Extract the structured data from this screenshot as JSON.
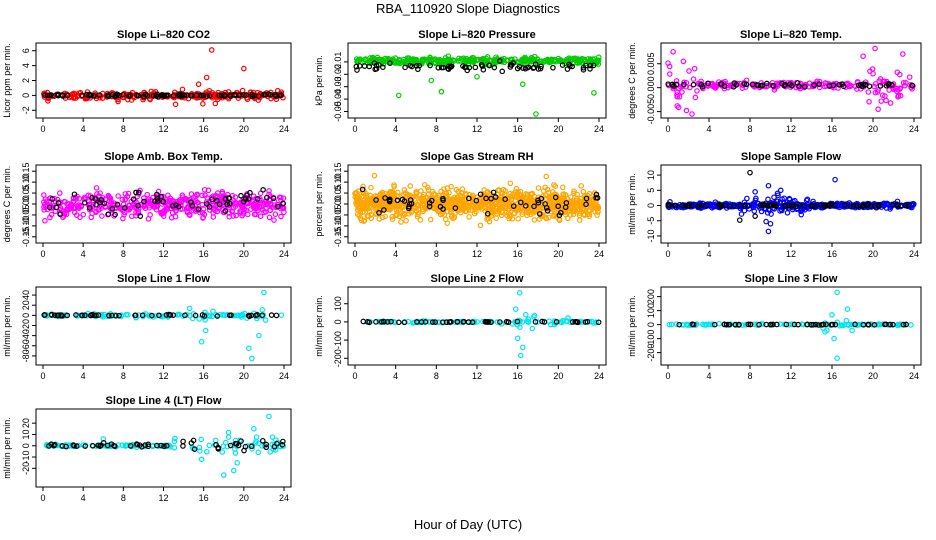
{
  "page": {
    "title": "RBA_110920  Slope Diagnostics",
    "xlabel": "Hour of Day (UTC)"
  },
  "chart_data": [
    {
      "id": "co2",
      "type": "scatter",
      "title": "Slope Li–820 CO2",
      "ylabel": "Licor ppm per min.",
      "xlabel": "",
      "xlim": [
        0,
        24
      ],
      "ylim": [
        -2.5,
        6.5
      ],
      "xticks": [
        "0",
        "4",
        "8",
        "12",
        "16",
        "20",
        "24"
      ],
      "yticks": [
        "-2",
        "0",
        "2",
        "4",
        "6"
      ],
      "ytick_values": [
        -2,
        0,
        2,
        4,
        6
      ],
      "series": [
        {
          "name": "points",
          "color": "#ff0000",
          "spread": 0.45,
          "count": 260,
          "center": 0,
          "outliers": [
            [
              16.8,
              6.1
            ],
            [
              16.3,
              2.4
            ],
            [
              20.0,
              3.6
            ],
            [
              15.5,
              1.5
            ],
            [
              13.2,
              -1.2
            ]
          ]
        },
        {
          "name": "reference",
          "color": "#000000",
          "spread": 0.12,
          "count": 90,
          "center": 0
        }
      ]
    },
    {
      "id": "pressure",
      "type": "scatter",
      "title": "Slope Li–820 Pressure",
      "ylabel": "kPa per min.",
      "xlabel": "",
      "xlim": [
        0,
        24
      ],
      "ylim": [
        -0.052,
        0.002
      ],
      "xticks": [
        "0",
        "4",
        "8",
        "12",
        "16",
        "20",
        "24"
      ],
      "yticks": [
        "-0.05",
        "-0.04",
        "-0.03",
        "-0.02",
        "-0.01"
      ],
      "ytick_values": [
        -0.05,
        -0.04,
        -0.03,
        -0.02,
        -0.01
      ],
      "series": [
        {
          "name": "points",
          "color": "#00cc00",
          "spread": 0.0022,
          "count": 360,
          "center": -0.009,
          "outliers": [
            [
              4.3,
              -0.037
            ],
            [
              8.5,
              -0.034
            ],
            [
              17.8,
              -0.052
            ],
            [
              23.5,
              -0.035
            ],
            [
              16.5,
              -0.028
            ],
            [
              7.5,
              -0.025
            ],
            [
              12.0,
              -0.022
            ]
          ]
        },
        {
          "name": "reference",
          "color": "#000000",
          "spread": 0.0025,
          "count": 70,
          "center": -0.014
        }
      ]
    },
    {
      "id": "temp",
      "type": "scatter",
      "title": "Slope Li–820 Temp.",
      "ylabel": "degrees C per min.",
      "xlabel": "",
      "xlim": [
        0,
        24
      ],
      "ylim": [
        -0.0055,
        0.0085
      ],
      "xticks": [
        "0",
        "4",
        "8",
        "12",
        "16",
        "20",
        "24"
      ],
      "yticks": [
        "-0.005",
        "0.000",
        "0.005"
      ],
      "ytick_values": [
        -0.005,
        0.0,
        0.005
      ],
      "series": [
        {
          "name": "points",
          "color": "#ff00ff",
          "spread": 0.0006,
          "count": 240,
          "center": 0.0005,
          "cluster_ranges": [
            [
              0,
              3,
              0.0035
            ],
            [
              19,
              23.6,
              0.0035
            ]
          ],
          "outliers": [
            [
              0.5,
              0.0075
            ],
            [
              20.2,
              0.0082
            ],
            [
              20.5,
              -0.0045
            ],
            [
              1.5,
              0.0055
            ]
          ]
        },
        {
          "name": "reference",
          "color": "#000000",
          "spread": 0.0004,
          "count": 55,
          "center": 0.0005
        }
      ]
    },
    {
      "id": "boxtemp",
      "type": "scatter",
      "title": "Slope Amb. Box Temp.",
      "ylabel": "degrees C per min.",
      "xlabel": "",
      "xlim": [
        0,
        24
      ],
      "ylim": [
        -0.16,
        0.16
      ],
      "xticks": [
        "0",
        "4",
        "8",
        "12",
        "16",
        "20",
        "24"
      ],
      "yticks": [
        "-0.15",
        "-0.10",
        "-0.05",
        "0.00",
        "0.05",
        "0.10",
        "0.15"
      ],
      "ytick_values": [
        -0.15,
        -0.1,
        -0.05,
        0.0,
        0.05,
        0.1,
        0.15
      ],
      "series": [
        {
          "name": "points",
          "color": "#ff00ff",
          "spread": 0.05,
          "count": 480,
          "center": 0.0,
          "outliers": []
        },
        {
          "name": "reference",
          "color": "#000000",
          "spread": 0.045,
          "count": 60,
          "center": 0.0
        }
      ]
    },
    {
      "id": "rh",
      "type": "scatter",
      "title": "Slope Gas Stream RH",
      "ylabel": "percent per min.",
      "xlabel": "",
      "xlim": [
        0,
        24
      ],
      "ylim": [
        -0.16,
        0.16
      ],
      "xticks": [
        "0",
        "4",
        "8",
        "12",
        "16",
        "20",
        "24"
      ],
      "yticks": [
        "-0.15",
        "-0.10",
        "-0.05",
        "0.00",
        "0.05",
        "0.10",
        "0.15"
      ],
      "ytick_values": [
        -0.15,
        -0.1,
        -0.05,
        0.0,
        0.05,
        0.1,
        0.15
      ],
      "series": [
        {
          "name": "points",
          "color": "#ffa500",
          "spread": 0.055,
          "count": 900,
          "center": 0.0,
          "outliers": []
        },
        {
          "name": "reference",
          "color": "#000000",
          "spread": 0.04,
          "count": 55,
          "center": 0.0
        }
      ]
    },
    {
      "id": "sampleflow",
      "type": "scatter",
      "title": "Slope Sample Flow",
      "ylabel": "ml/min per min.",
      "xlabel": "",
      "xlim": [
        0,
        24
      ],
      "ylim": [
        -11,
        12
      ],
      "xticks": [
        "0",
        "4",
        "8",
        "12",
        "16",
        "20",
        "24"
      ],
      "yticks": [
        "-10",
        "-5",
        "0",
        "5",
        "10"
      ],
      "ytick_values": [
        -10,
        -5,
        0,
        5,
        10
      ],
      "series": [
        {
          "name": "points",
          "color": "#0000ff",
          "spread": 0.7,
          "count": 420,
          "center": 0,
          "cluster_ranges": [
            [
              7,
              14,
              2.8
            ]
          ],
          "outliers": [
            [
              9.8,
              6.5
            ],
            [
              9.8,
              -8.5
            ],
            [
              10.0,
              -6.0
            ],
            [
              8.5,
              4.5
            ],
            [
              16.3,
              8.5
            ],
            [
              11.0,
              5.0
            ],
            [
              13.0,
              -3.0
            ]
          ]
        },
        {
          "name": "reference",
          "color": "#000000",
          "spread": 0.25,
          "count": 80,
          "center": 0,
          "outliers": [
            [
              8.0,
              10.8
            ],
            [
              7.0,
              -4.8
            ],
            [
              8.5,
              -3.5
            ]
          ]
        }
      ]
    },
    {
      "id": "line1",
      "type": "scatter",
      "title": "Slope Line 1 Flow",
      "ylabel": "ml/min per min.",
      "xlabel": "",
      "xlim": [
        0,
        24
      ],
      "ylim": [
        -90,
        48
      ],
      "xticks": [
        "0",
        "4",
        "8",
        "12",
        "16",
        "20",
        "24"
      ],
      "yticks": [
        "-80",
        "-60",
        "-40",
        "-20",
        "0",
        "20",
        "40"
      ],
      "ytick_values": [
        -80,
        -60,
        -40,
        -20,
        0,
        20,
        40
      ],
      "series": [
        {
          "name": "points",
          "color": "#00e5ee",
          "spread": 2.5,
          "count": 120,
          "center": 0,
          "cluster_ranges": [
            [
              8,
              12,
              7
            ],
            [
              14,
              17,
              14
            ],
            [
              20,
              23,
              16
            ]
          ],
          "outliers": [
            [
              15.8,
              -52
            ],
            [
              20.5,
              -65
            ],
            [
              22.0,
              45
            ],
            [
              20.8,
              -85
            ],
            [
              16.2,
              -30
            ],
            [
              21.5,
              -40
            ]
          ]
        },
        {
          "name": "reference",
          "color": "#000000",
          "spread": 1.0,
          "count": 50,
          "center": 0
        }
      ]
    },
    {
      "id": "line2",
      "type": "scatter",
      "title": "Slope Line 2 Flow",
      "ylabel": "ml/min per min.",
      "xlabel": "",
      "xlim": [
        0,
        24
      ],
      "ylim": [
        -215,
        170
      ],
      "xticks": [
        "0",
        "4",
        "8",
        "12",
        "16",
        "20",
        "24"
      ],
      "yticks": [
        "-200",
        "-100",
        "0",
        "100"
      ],
      "ytick_values": [
        -200,
        -100,
        0,
        100
      ],
      "series": [
        {
          "name": "points",
          "color": "#00e5ee",
          "spread": 4,
          "count": 110,
          "center": 0,
          "cluster_ranges": [
            [
              14,
              18,
              40
            ],
            [
              19,
              22,
              18
            ]
          ],
          "outliers": [
            [
              16.2,
              160
            ],
            [
              16.3,
              -185
            ],
            [
              16.0,
              -90
            ],
            [
              15.8,
              70
            ],
            [
              16.8,
              40
            ],
            [
              16.5,
              -140
            ]
          ]
        },
        {
          "name": "reference",
          "color": "#000000",
          "spread": 2,
          "count": 50,
          "center": 0
        }
      ]
    },
    {
      "id": "line3",
      "type": "scatter",
      "title": "Slope Line 3 Flow",
      "ylabel": "ml/min per min.",
      "xlabel": "",
      "xlim": [
        0,
        24
      ],
      "ylim": [
        -260,
        240
      ],
      "xticks": [
        "0",
        "4",
        "8",
        "12",
        "16",
        "20",
        "24"
      ],
      "yticks": [
        "-200",
        "-100",
        "0",
        "100",
        "200"
      ],
      "ytick_values": [
        -200,
        -100,
        0,
        100,
        200
      ],
      "series": [
        {
          "name": "points",
          "color": "#00e5ee",
          "spread": 4,
          "count": 110,
          "center": 0,
          "cluster_ranges": [
            [
              15,
              18,
              30
            ]
          ],
          "outliers": [
            [
              16.5,
              230
            ],
            [
              16.5,
              -240
            ],
            [
              16.2,
              -100
            ],
            [
              16.0,
              70
            ],
            [
              17.5,
              110
            ],
            [
              15.5,
              -40
            ]
          ]
        },
        {
          "name": "reference",
          "color": "#000000",
          "spread": 2,
          "count": 50,
          "center": 0
        }
      ]
    },
    {
      "id": "line4",
      "type": "scatter",
      "title": "Slope Line 4 (LT) Flow",
      "ylabel": "ml/min per min.",
      "xlabel": "",
      "xlim": [
        0,
        24
      ],
      "ylim": [
        -33,
        29
      ],
      "xticks": [
        "0",
        "4",
        "8",
        "12",
        "16",
        "20",
        "24"
      ],
      "yticks": [
        "-20",
        "-10",
        "0",
        "10",
        "20"
      ],
      "ytick_values": [
        -20,
        -10,
        0,
        10,
        20
      ],
      "series": [
        {
          "name": "points",
          "color": "#00e5ee",
          "spread": 0.8,
          "count": 130,
          "center": 0,
          "cluster_ranges": [
            [
              13,
              23.5,
              9
            ]
          ],
          "outliers": [
            [
              22.5,
              26
            ],
            [
              18.0,
              -26
            ],
            [
              19.0,
              -22
            ],
            [
              6.0,
              6
            ],
            [
              21.0,
              15
            ],
            [
              15.8,
              -12
            ]
          ]
        },
        {
          "name": "reference",
          "color": "#000000",
          "spread": 1.5,
          "count": 55,
          "center": 0,
          "cluster_ranges": [
            [
              13,
              24,
              4
            ]
          ]
        }
      ]
    }
  ]
}
